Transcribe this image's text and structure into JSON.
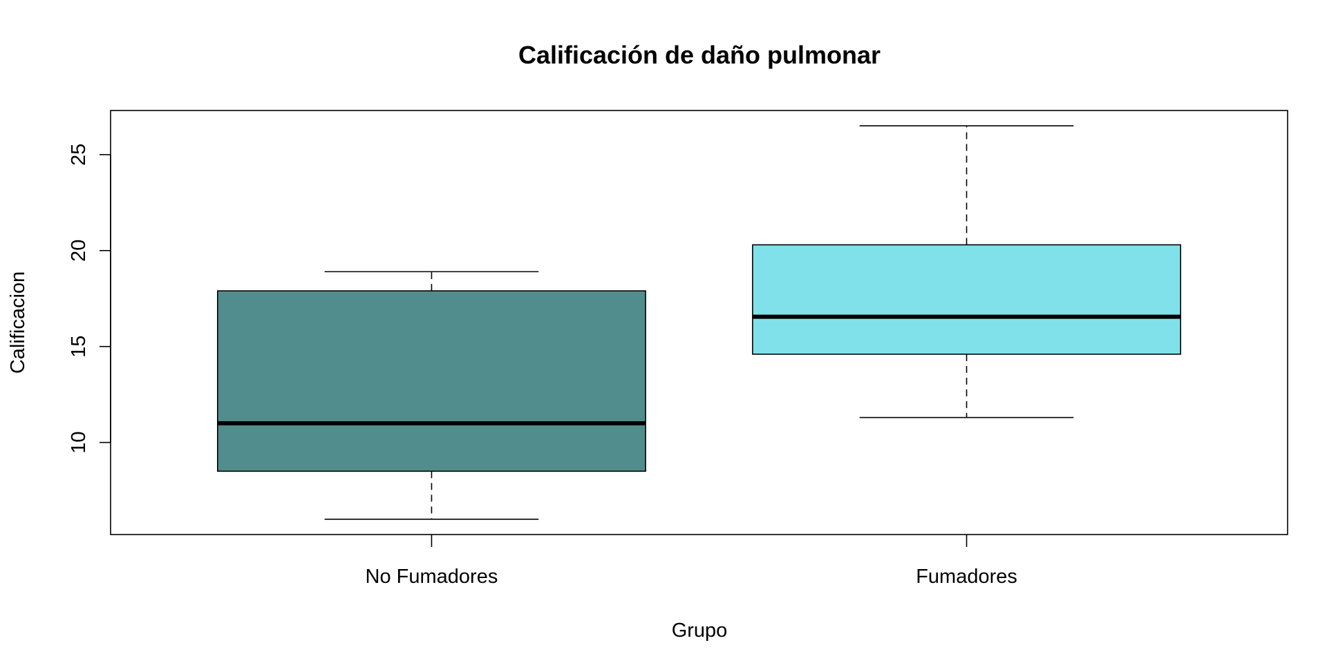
{
  "chart_data": {
    "type": "boxplot",
    "title": "Calificación de daño pulmonar",
    "xlabel": "Grupo",
    "ylabel": "Calificacion",
    "ylim": [
      5.2,
      27.3
    ],
    "yticks": [
      10,
      15,
      20,
      25
    ],
    "categories": [
      "No Fumadores",
      "Fumadores"
    ],
    "boxes": [
      {
        "category": "No Fumadores",
        "min": 6.0,
        "q1": 8.5,
        "median": 11.0,
        "q3": 17.9,
        "max": 18.9,
        "color": "#528D8D"
      },
      {
        "category": "Fumadores",
        "min": 11.3,
        "q1": 14.6,
        "median": 16.55,
        "q3": 20.3,
        "max": 26.5,
        "color": "#81E1EA"
      }
    ],
    "grid": false,
    "legend": "none"
  }
}
